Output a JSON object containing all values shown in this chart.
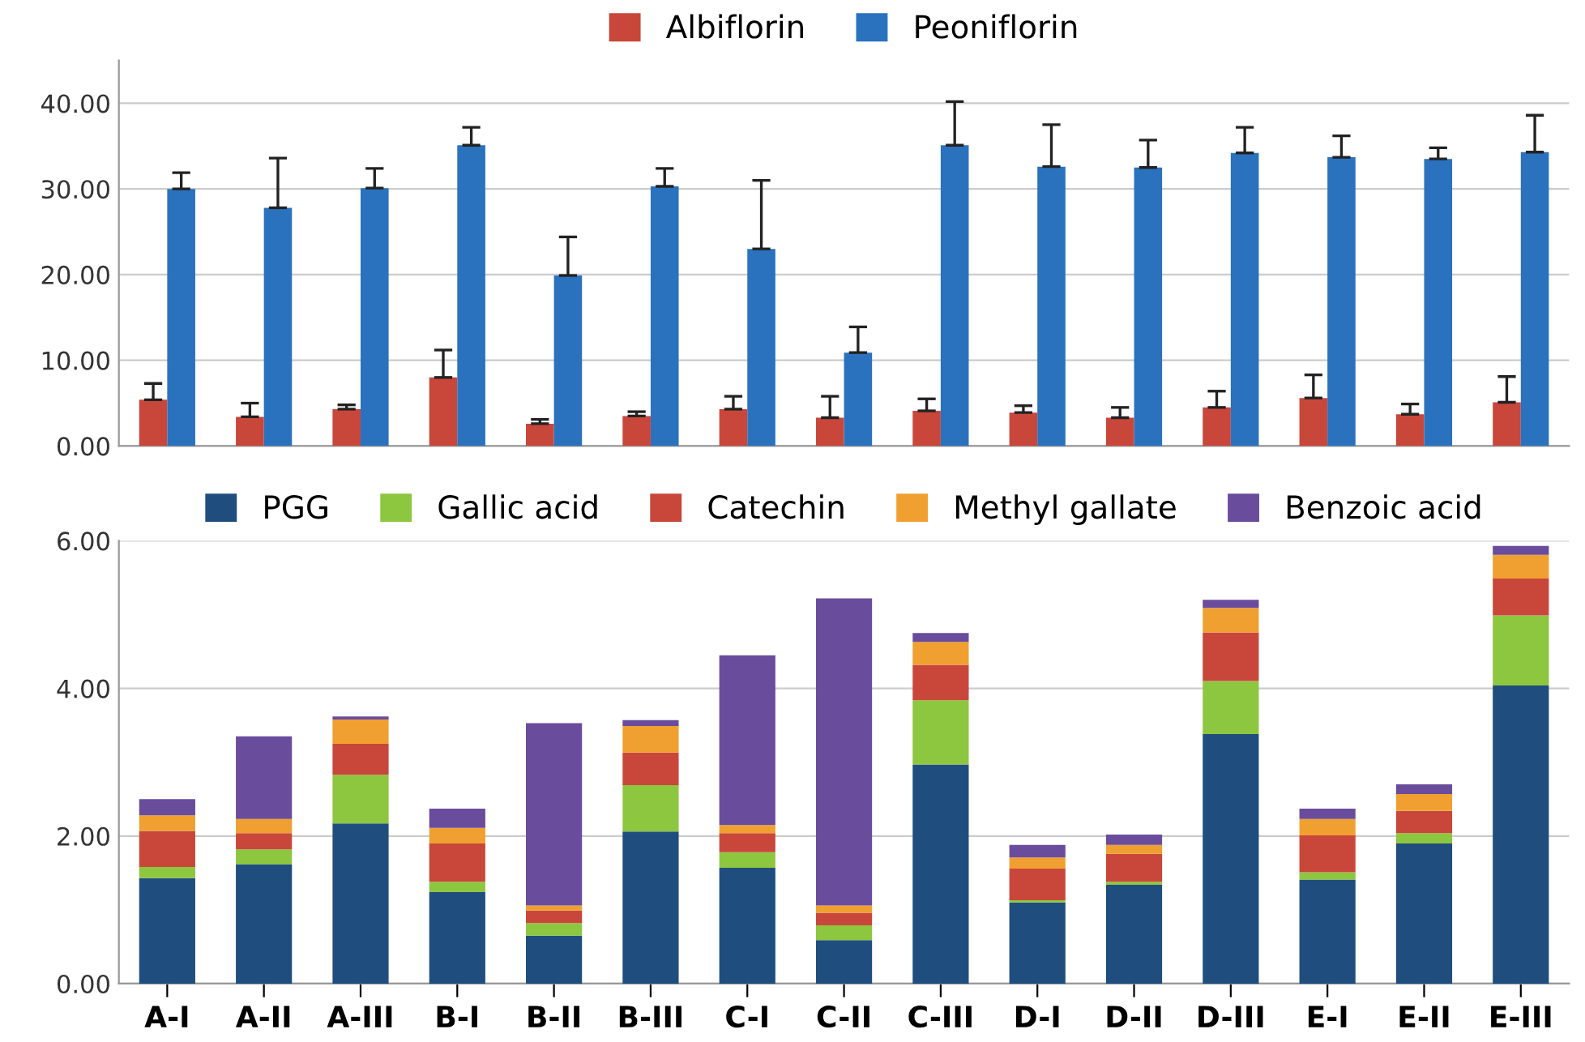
{
  "chart_data": [
    {
      "type": "bar",
      "categories": [
        null,
        null,
        null,
        null,
        null,
        null,
        null,
        null,
        null,
        null,
        null,
        null,
        null,
        null,
        null
      ],
      "series": [
        {
          "name": "Albiflorin",
          "color": "#c8473a",
          "values": [
            5.4,
            3.4,
            4.3,
            8.0,
            2.6,
            3.5,
            4.3,
            3.3,
            4.1,
            3.9,
            3.3,
            4.5,
            5.6,
            3.7,
            5.1
          ],
          "errors": [
            [
              5.4,
              7.3
            ],
            [
              3.4,
              5.0
            ],
            [
              4.3,
              4.8
            ],
            [
              8.0,
              11.2
            ],
            [
              2.6,
              3.1
            ],
            [
              3.5,
              4.0
            ],
            [
              4.3,
              5.8
            ],
            [
              3.3,
              5.8
            ],
            [
              4.1,
              5.5
            ],
            [
              3.9,
              4.7
            ],
            [
              3.3,
              4.5
            ],
            [
              4.5,
              6.4
            ],
            [
              5.6,
              8.3
            ],
            [
              3.7,
              4.9
            ],
            [
              5.1,
              8.1
            ]
          ]
        },
        {
          "name": "Peoniflorin",
          "color": "#2a72be",
          "values": [
            30.0,
            27.8,
            30.1,
            35.1,
            19.9,
            30.3,
            23.0,
            10.9,
            35.1,
            32.6,
            32.5,
            34.2,
            33.7,
            33.5,
            34.3
          ],
          "errors": [
            [
              30.0,
              31.9
            ],
            [
              27.8,
              33.6
            ],
            [
              30.1,
              32.4
            ],
            [
              35.1,
              37.2
            ],
            [
              19.9,
              24.4
            ],
            [
              30.3,
              32.4
            ],
            [
              23.0,
              31.0
            ],
            [
              10.9,
              13.9
            ],
            [
              35.1,
              40.2
            ],
            [
              32.6,
              37.5
            ],
            [
              32.5,
              35.7
            ],
            [
              34.2,
              37.2
            ],
            [
              33.7,
              36.2
            ],
            [
              33.5,
              34.8
            ],
            [
              34.3,
              38.6
            ]
          ]
        }
      ],
      "ylim": [
        0,
        45
      ],
      "yticks": [
        {
          "value": 0,
          "label": "0.00"
        },
        {
          "value": 10,
          "label": "10.00"
        },
        {
          "value": 20,
          "label": "20.00"
        },
        {
          "value": 30,
          "label": "30.00"
        },
        {
          "value": 40,
          "label": "40.00"
        }
      ],
      "grid": "y",
      "legend": "top"
    },
    {
      "type": "bar",
      "stacked": true,
      "categories": [
        "A-I",
        "A-II",
        "A-III",
        "B-I",
        "B-II",
        "B-III",
        "C-I",
        "C-II",
        "C-III",
        "D-I",
        "D-II",
        "D-III",
        "E-I",
        "E-II",
        "E-III"
      ],
      "series": [
        {
          "name": "PGG",
          "color": "#1f4e7e",
          "values": [
            1.43,
            1.62,
            2.17,
            1.24,
            0.65,
            2.06,
            1.57,
            0.59,
            2.97,
            1.1,
            1.34,
            3.38,
            1.41,
            1.9,
            4.04
          ]
        },
        {
          "name": "Gallic acid",
          "color": "#8dc63f",
          "values": [
            0.15,
            0.2,
            0.66,
            0.14,
            0.17,
            0.63,
            0.21,
            0.2,
            0.87,
            0.03,
            0.04,
            0.72,
            0.1,
            0.14,
            0.95
          ]
        },
        {
          "name": "Catechin",
          "color": "#c9473a",
          "values": [
            0.49,
            0.22,
            0.42,
            0.52,
            0.17,
            0.44,
            0.26,
            0.17,
            0.48,
            0.43,
            0.38,
            0.66,
            0.5,
            0.3,
            0.5
          ]
        },
        {
          "name": "Methyl gallate",
          "color": "#f0a030",
          "values": [
            0.21,
            0.19,
            0.33,
            0.21,
            0.07,
            0.36,
            0.11,
            0.1,
            0.31,
            0.15,
            0.12,
            0.33,
            0.22,
            0.23,
            0.32
          ]
        },
        {
          "name": "Benzoic acid",
          "color": "#6a4c9c",
          "values": [
            0.22,
            1.12,
            0.04,
            0.26,
            2.47,
            0.08,
            2.3,
            4.16,
            0.12,
            0.17,
            0.14,
            0.11,
            0.14,
            0.13,
            0.12
          ]
        }
      ],
      "ylim": [
        0,
        6
      ],
      "yticks": [
        {
          "value": 0,
          "label": "0.00"
        },
        {
          "value": 2,
          "label": "2.00"
        },
        {
          "value": 4,
          "label": "4.00"
        },
        {
          "value": 6,
          "label": "6.00"
        }
      ],
      "grid": "y",
      "legend": "top"
    }
  ]
}
